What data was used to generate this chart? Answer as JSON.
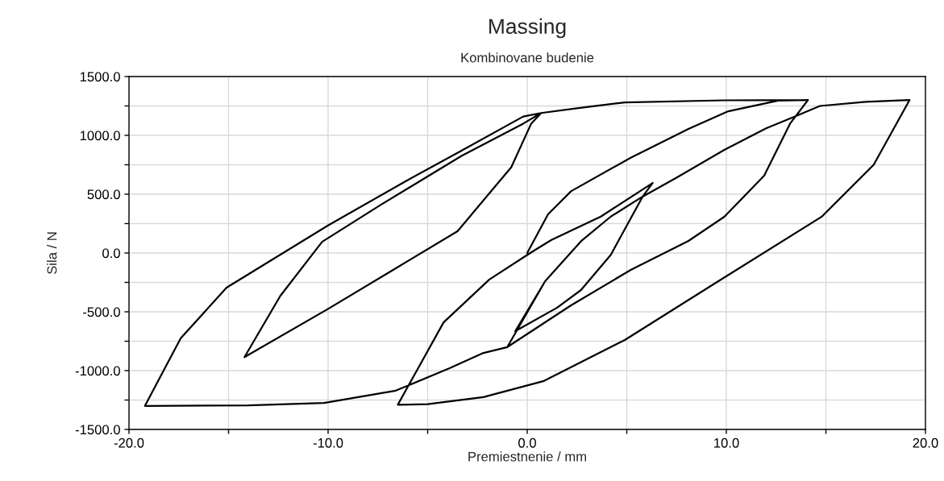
{
  "chart_data": {
    "type": "line",
    "title": "Massing",
    "subtitle": "Kombinovane budenie",
    "xlabel": "Premiestnenie / mm",
    "ylabel": "Sila / N",
    "xlim": [
      -20,
      20
    ],
    "ylim": [
      -1500,
      1500
    ],
    "xticks": [
      {
        "value": -20,
        "label": "-20.0"
      },
      {
        "value": -15,
        "label": null
      },
      {
        "value": -10,
        "label": "-10.0"
      },
      {
        "value": -5,
        "label": null
      },
      {
        "value": 0,
        "label": "0.0"
      },
      {
        "value": 5,
        "label": null
      },
      {
        "value": 10,
        "label": "10.0"
      },
      {
        "value": 15,
        "label": null
      },
      {
        "value": 20,
        "label": "20.0"
      }
    ],
    "yticks": [
      {
        "value": -1500,
        "label": "-1500.0"
      },
      {
        "value": -1250,
        "label": null
      },
      {
        "value": -1000,
        "label": "-1000.0"
      },
      {
        "value": -750,
        "label": null
      },
      {
        "value": -500,
        "label": "-500.0"
      },
      {
        "value": -250,
        "label": null
      },
      {
        "value": 0,
        "label": "0.0"
      },
      {
        "value": 250,
        "label": null
      },
      {
        "value": 500,
        "label": "500.0"
      },
      {
        "value": 750,
        "label": null
      },
      {
        "value": 1000,
        "label": "1000.0"
      },
      {
        "value": 1250,
        "label": null
      },
      {
        "value": 1500,
        "label": "1500.0"
      }
    ],
    "grid": true,
    "marker": "none",
    "line_style": "solid",
    "series": [
      {
        "color": "#000000",
        "x": [
          0,
          1.05,
          2.2,
          5.2,
          8.1,
          10.1,
          12.6,
          14.1,
          13.2,
          11.9,
          9.9,
          8.1,
          5.2,
          2.2,
          -1.0,
          0.9,
          2.7,
          4.2,
          5.8,
          6.3,
          5.8,
          4.6,
          4.2,
          2.7,
          1.5,
          -0.6,
          0.9,
          2.7,
          4.2,
          5.8,
          7.5,
          9.9,
          12,
          13.5,
          14.1,
          13.2,
          11.9,
          9.9,
          8.1,
          5.2,
          2.2,
          -1.0,
          -2.2,
          -3.9,
          -6.6,
          -10.2,
          -14,
          -19.2,
          -17.4,
          -15.1,
          -10,
          -6,
          -3.3,
          -0.2,
          0.7,
          0.2,
          -0.8,
          -3.5,
          -6.6,
          -10,
          -14.2,
          -12.4,
          -10.3,
          -7.3,
          -3.3,
          -0.2,
          0.7,
          2.5,
          4.9,
          9.9,
          14.1,
          13.2,
          11.9,
          9.9,
          8.1,
          5.2,
          2.2,
          -1.0,
          0.9,
          2.7,
          4.2,
          5.8,
          7.5,
          9.9,
          12,
          13.5,
          14.7,
          17,
          19.2,
          17.4,
          14.8,
          9.6,
          4.9,
          0.8,
          -2.2,
          -5,
          -6.5,
          -4.2,
          -1.9,
          0.2,
          1.2,
          3.7,
          6.3
        ],
        "values": [
          0,
          330,
          525,
          810,
          1055,
          1205,
          1295,
          1300,
          1100,
          657,
          308,
          103,
          -144,
          -445,
          -800,
          -240,
          100,
          310,
          480,
          595,
          480,
          110,
          -15,
          -315,
          -465,
          -665,
          -240,
          100,
          310,
          480,
          640,
          877,
          1060,
          1165,
          1300,
          1100,
          657,
          308,
          103,
          -144,
          -445,
          -800,
          -850,
          -980,
          -1170,
          -1275,
          -1295,
          -1300,
          -725,
          -295,
          235,
          620,
          870,
          1160,
          1190,
          1100,
          730,
          185,
          -130,
          -475,
          -885,
          -365,
          95,
          415,
          825,
          1100,
          1190,
          1230,
          1280,
          1298,
          1300,
          1100,
          657,
          308,
          103,
          -144,
          -445,
          -800,
          -240,
          100,
          310,
          480,
          640,
          877,
          1060,
          1165,
          1250,
          1285,
          1300,
          750,
          310,
          -240,
          -740,
          -1090,
          -1225,
          -1285,
          -1290,
          -590,
          -225,
          5,
          110,
          310,
          595
        ]
      }
    ]
  }
}
